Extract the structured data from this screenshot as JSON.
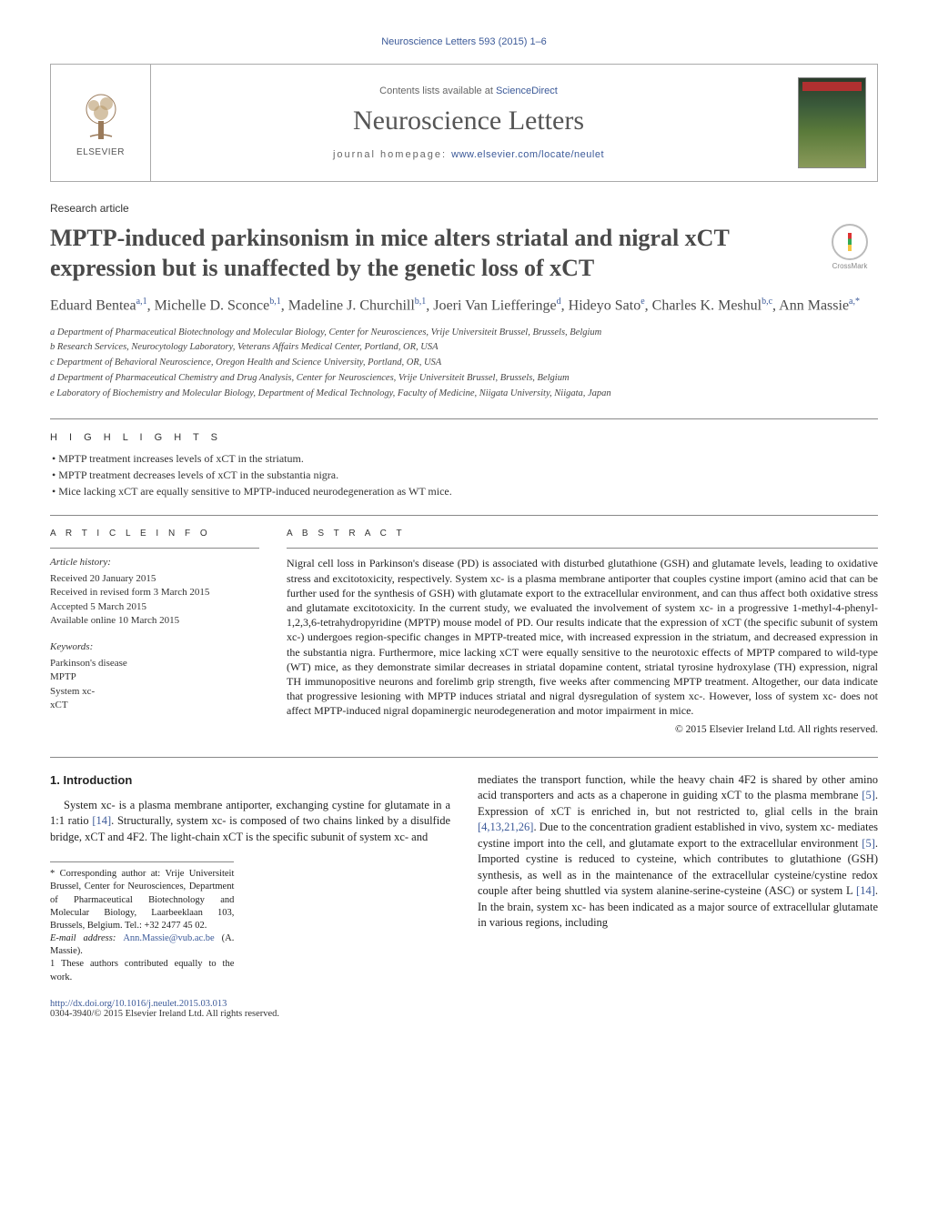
{
  "header": {
    "citation": "Neuroscience Letters 593 (2015) 1–6",
    "contents_line_prefix": "Contents lists available at ",
    "contents_line_link": "ScienceDirect",
    "journal_name": "Neuroscience Letters",
    "homepage_prefix": "journal homepage: ",
    "homepage_url": "www.elsevier.com/locate/neulet",
    "publisher": "ELSEVIER"
  },
  "article": {
    "type": "Research article",
    "title": "MPTP-induced parkinsonism in mice alters striatal and nigral xCT expression but is unaffected by the genetic loss of xCT",
    "crossmark_label": "CrossMark"
  },
  "authors_html": "Eduard Bentea<sup>a,1</sup>, Michelle D. Sconce<sup>b,1</sup>, Madeline J. Churchill<sup>b,1</sup>, Joeri Van Liefferinge<sup>d</sup>, Hideyo Sato<sup>e</sup>, Charles K. Meshul<sup>b,c</sup>, Ann Massie<sup>a,*</sup>",
  "affiliations": [
    "a Department of Pharmaceutical Biotechnology and Molecular Biology, Center for Neurosciences, Vrije Universiteit Brussel, Brussels, Belgium",
    "b Research Services, Neurocytology Laboratory, Veterans Affairs Medical Center, Portland, OR, USA",
    "c Department of Behavioral Neuroscience, Oregon Health and Science University, Portland, OR, USA",
    "d Department of Pharmaceutical Chemistry and Drug Analysis, Center for Neurosciences, Vrije Universiteit Brussel, Brussels, Belgium",
    "e Laboratory of Biochemistry and Molecular Biology, Department of Medical Technology, Faculty of Medicine, Niigata University, Niigata, Japan"
  ],
  "highlights": {
    "label": "H I G H L I G H T S",
    "items": [
      "MPTP treatment increases levels of xCT in the striatum.",
      "MPTP treatment decreases levels of xCT in the substantia nigra.",
      "Mice lacking xCT are equally sensitive to MPTP-induced neurodegeneration as WT mice."
    ]
  },
  "article_info": {
    "heading": "A R T I C L E   I N F O",
    "history_label": "Article history:",
    "history": [
      "Received 20 January 2015",
      "Received in revised form 3 March 2015",
      "Accepted 5 March 2015",
      "Available online 10 March 2015"
    ],
    "keywords_label": "Keywords:",
    "keywords": [
      "Parkinson's disease",
      "MPTP",
      "System xc-",
      "xCT"
    ]
  },
  "abstract": {
    "heading": "A B S T R A C T",
    "text": "Nigral cell loss in Parkinson's disease (PD) is associated with disturbed glutathione (GSH) and glutamate levels, leading to oxidative stress and excitotoxicity, respectively. System xc- is a plasma membrane antiporter that couples cystine import (amino acid that can be further used for the synthesis of GSH) with glutamate export to the extracellular environment, and can thus affect both oxidative stress and glutamate excitotoxicity. In the current study, we evaluated the involvement of system xc- in a progressive 1-methyl-4-phenyl-1,2,3,6-tetrahydropyridine (MPTP) mouse model of PD. Our results indicate that the expression of xCT (the specific subunit of system xc-) undergoes region-specific changes in MPTP-treated mice, with increased expression in the striatum, and decreased expression in the substantia nigra. Furthermore, mice lacking xCT were equally sensitive to the neurotoxic effects of MPTP compared to wild-type (WT) mice, as they demonstrate similar decreases in striatal dopamine content, striatal tyrosine hydroxylase (TH) expression, nigral TH immunopositive neurons and forelimb grip strength, five weeks after commencing MPTP treatment. Altogether, our data indicate that progressive lesioning with MPTP induces striatal and nigral dysregulation of system xc-. However, loss of system xc- does not affect MPTP-induced nigral dopaminergic neurodegeneration and motor impairment in mice.",
    "copyright": "© 2015 Elsevier Ireland Ltd. All rights reserved."
  },
  "body": {
    "section_heading": "1.  Introduction",
    "col1_p1_a": "System xc- is a plasma membrane antiporter, exchanging cystine for glutamate in a 1:1 ratio ",
    "col1_p1_cite1": "[14]",
    "col1_p1_b": ". Structurally, system xc- is composed of two chains linked by a disulfide bridge, xCT and 4F2. The light-chain xCT is the specific subunit of system xc- and",
    "col2_p1_a": "mediates the transport function, while the heavy chain 4F2 is shared by other amino acid transporters and acts as a chaperone in guiding xCT to the plasma membrane ",
    "col2_p1_cite1": "[5]",
    "col2_p1_b": ". Expression of xCT is enriched in, but not restricted to, glial cells in the brain ",
    "col2_p1_cite2": "[4,13,21,26]",
    "col2_p1_c": ". Due to the concentration gradient established in vivo, system xc- mediates cystine import into the cell, and glutamate export to the extracellular environment ",
    "col2_p1_cite3": "[5]",
    "col2_p1_d": ". Imported cystine is reduced to cysteine, which contributes to glutathione (GSH) synthesis, as well as in the maintenance of the extracellular cysteine/cystine redox couple after being shuttled via system alanine-serine-cysteine (ASC) or system L ",
    "col2_p1_cite4": "[14]",
    "col2_p1_e": ". In the brain, system xc- has been indicated as a major source of extracellular glutamate in various regions, including"
  },
  "footnotes": {
    "corresponding": "* Corresponding author at: Vrije Universiteit Brussel, Center for Neurosciences, Department of Pharmaceutical Biotechnology and Molecular Biology, Laarbeeklaan 103, Brussels, Belgium. Tel.: +32 2477 45 02.",
    "email_label": "E-mail address: ",
    "email": "Ann.Massie@vub.ac.be",
    "email_suffix": " (A. Massie).",
    "equal": "1 These authors contributed equally to the work."
  },
  "footer": {
    "doi": "http://dx.doi.org/10.1016/j.neulet.2015.03.013",
    "issn_line": "0304-3940/© 2015 Elsevier Ireland Ltd. All rights reserved."
  },
  "colors": {
    "link": "#3b5998",
    "text": "#222222",
    "muted": "#4a4a4a",
    "rule": "#888888"
  }
}
